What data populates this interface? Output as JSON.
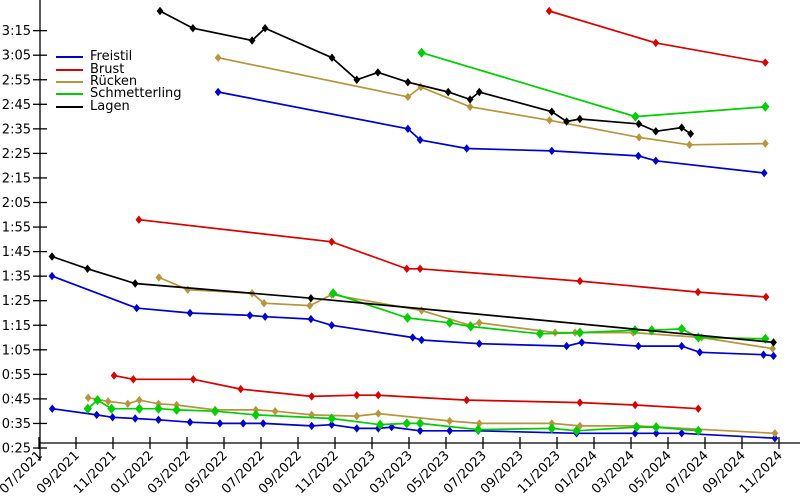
{
  "page": {
    "background": "#ffffff"
  },
  "chart_data": {
    "type": "line",
    "title": "",
    "marker": "diamond",
    "grid": false,
    "legend_position": "upper-left-inside",
    "x_axis": {
      "unit": "month/year",
      "note": "series point x values are in tick-index units: 0 = 07/2021, each tick = 2 months",
      "tick_labels": [
        "07/2021",
        "09/2021",
        "11/2021",
        "01/2022",
        "03/2022",
        "05/2022",
        "07/2022",
        "09/2022",
        "11/2022",
        "01/2023",
        "03/2023",
        "05/2023",
        "07/2023",
        "09/2023",
        "11/2023",
        "01/2024",
        "03/2024",
        "05/2024",
        "07/2024",
        "09/2024",
        "11/2024"
      ]
    },
    "y_axis": {
      "unit": "min:sec (swim time, seconds in data)",
      "labeled_range_seconds": [
        25,
        195
      ],
      "tick_labels": [
        "0:25",
        "0:35",
        "0:45",
        "0:55",
        "1:05",
        "1:15",
        "1:25",
        "1:35",
        "1:45",
        "1:55",
        "2:05",
        "2:15",
        "2:25",
        "2:35",
        "2:45",
        "2:55",
        "3:05",
        "3:15"
      ]
    },
    "legend": [
      {
        "label": "Freistil",
        "color": "#0000cc"
      },
      {
        "label": "Brust",
        "color": "#d60000"
      },
      {
        "label": "Rücken",
        "color": "#b5953e"
      },
      {
        "label": "Schmetterling",
        "color": "#00cd00"
      },
      {
        "label": "Lagen",
        "color": "#000000"
      }
    ],
    "series": [
      {
        "stroke": "Freistil",
        "group": "top",
        "color": "#0000cc",
        "points": [
          [
            4.84,
            170
          ],
          [
            9.97,
            155
          ],
          [
            10.3,
            150.5
          ],
          [
            11.56,
            147
          ],
          [
            13.86,
            146
          ],
          [
            16.2,
            144
          ],
          [
            16.67,
            142
          ],
          [
            19.6,
            137
          ]
        ]
      },
      {
        "stroke": "Freistil",
        "group": "middle",
        "color": "#0000cc",
        "points": [
          [
            0.35,
            95
          ],
          [
            2.64,
            82
          ],
          [
            4.08,
            80
          ],
          [
            5.7,
            79
          ],
          [
            6.11,
            78.5
          ],
          [
            7.35,
            77.5
          ],
          [
            7.91,
            75
          ],
          [
            10.1,
            70
          ],
          [
            10.34,
            69
          ],
          [
            11.9,
            67.5
          ],
          [
            14.26,
            66.5
          ],
          [
            14.67,
            68
          ],
          [
            16.2,
            66.5
          ],
          [
            17.37,
            66.5
          ],
          [
            17.86,
            64
          ],
          [
            19.58,
            63
          ],
          [
            19.85,
            62.5
          ]
        ]
      },
      {
        "stroke": "Freistil",
        "group": "bottom",
        "color": "#0000cc",
        "points": [
          [
            0.36,
            41
          ],
          [
            1.56,
            38.5
          ],
          [
            1.99,
            37.5
          ],
          [
            2.6,
            37
          ],
          [
            3.23,
            36.5
          ],
          [
            4.08,
            35.5
          ],
          [
            4.89,
            35
          ],
          [
            5.52,
            35
          ],
          [
            6.06,
            35
          ],
          [
            7.37,
            34
          ],
          [
            7.91,
            34.5
          ],
          [
            8.59,
            33
          ],
          [
            9.17,
            33
          ],
          [
            9.53,
            33.5
          ],
          [
            10.3,
            32
          ],
          [
            11.1,
            32
          ],
          [
            11.87,
            32
          ],
          [
            14.53,
            31
          ],
          [
            16.11,
            31
          ],
          [
            16.68,
            31
          ],
          [
            17.37,
            31
          ],
          [
            19.89,
            29
          ]
        ]
      },
      {
        "stroke": "Brust",
        "group": "top",
        "color": "#d60000",
        "points": [
          [
            13.79,
            203
          ],
          [
            16.67,
            190
          ],
          [
            19.63,
            182
          ]
        ]
      },
      {
        "stroke": "Brust",
        "group": "middle",
        "color": "#d60000",
        "points": [
          [
            2.7,
            118
          ],
          [
            7.91,
            109
          ],
          [
            9.94,
            98
          ],
          [
            10.3,
            98
          ],
          [
            14.62,
            93
          ],
          [
            17.81,
            88.5
          ],
          [
            19.65,
            86.5
          ]
        ]
      },
      {
        "stroke": "Brust",
        "group": "bottom",
        "color": "#d60000",
        "points": [
          [
            2.03,
            54.5
          ],
          [
            2.55,
            53
          ],
          [
            4.17,
            53
          ],
          [
            5.45,
            49
          ],
          [
            7.37,
            46
          ],
          [
            8.59,
            46.5
          ],
          [
            9.17,
            46.5
          ],
          [
            11.56,
            44.5
          ],
          [
            14.62,
            43.5
          ],
          [
            16.11,
            42.5
          ],
          [
            17.82,
            41
          ]
        ]
      },
      {
        "stroke": "Rücken",
        "group": "top",
        "color": "#b5953e",
        "points": [
          [
            4.84,
            184
          ],
          [
            9.97,
            168
          ],
          [
            10.32,
            172
          ],
          [
            11.65,
            164
          ],
          [
            13.8,
            158.5
          ],
          [
            16.22,
            151.5
          ],
          [
            17.58,
            148.5
          ],
          [
            19.63,
            149
          ]
        ]
      },
      {
        "stroke": "Rücken",
        "group": "middle",
        "color": "#b5953e",
        "points": [
          [
            3.24,
            94.5
          ],
          [
            4.02,
            89.5
          ],
          [
            5.76,
            88
          ],
          [
            6.08,
            84
          ],
          [
            7.32,
            83
          ],
          [
            7.91,
            87.5
          ],
          [
            10.34,
            81
          ],
          [
            11.65,
            75
          ],
          [
            11.9,
            76
          ],
          [
            13.95,
            72
          ],
          [
            14.49,
            72
          ],
          [
            16.06,
            72
          ],
          [
            17.91,
            70
          ],
          [
            19.83,
            65.5
          ]
        ]
      },
      {
        "stroke": "Rücken",
        "group": "bottom",
        "color": "#b5953e",
        "points": [
          [
            1.33,
            45.5
          ],
          [
            1.87,
            44
          ],
          [
            2.4,
            43
          ],
          [
            2.71,
            44.5
          ],
          [
            3.23,
            43
          ],
          [
            3.72,
            42.5
          ],
          [
            4.76,
            40.5
          ],
          [
            5.86,
            40.5
          ],
          [
            6.38,
            40
          ],
          [
            7.37,
            38.5
          ],
          [
            8.59,
            38
          ],
          [
            9.17,
            39
          ],
          [
            11.1,
            36
          ],
          [
            11.9,
            35
          ],
          [
            13.86,
            35
          ],
          [
            14.62,
            34
          ],
          [
            16.15,
            34
          ],
          [
            19.89,
            31
          ]
        ]
      },
      {
        "stroke": "Schmetterling",
        "group": "top",
        "color": "#00cd00",
        "points": [
          [
            10.34,
            186
          ],
          [
            16.12,
            160
          ],
          [
            19.63,
            164
          ]
        ]
      },
      {
        "stroke": "Schmetterling",
        "group": "middle",
        "color": "#00cd00",
        "points": [
          [
            7.95,
            88
          ],
          [
            9.96,
            78
          ],
          [
            11.1,
            76
          ],
          [
            11.67,
            74.5
          ],
          [
            13.54,
            71.5
          ],
          [
            14.62,
            72
          ],
          [
            16.11,
            73
          ],
          [
            16.56,
            73
          ],
          [
            17.37,
            73.5
          ],
          [
            17.82,
            70
          ],
          [
            19.63,
            69.5
          ]
        ]
      },
      {
        "stroke": "Schmetterling",
        "group": "bottom",
        "color": "#00cd00",
        "points": [
          [
            1.32,
            41
          ],
          [
            1.58,
            44.5
          ],
          [
            1.96,
            41
          ],
          [
            2.71,
            41
          ],
          [
            3.23,
            41
          ],
          [
            3.72,
            40.5
          ],
          [
            4.76,
            40
          ],
          [
            5.86,
            38.5
          ],
          [
            7.91,
            37
          ],
          [
            9.22,
            34.5
          ],
          [
            9.94,
            35
          ],
          [
            10.3,
            35
          ],
          [
            11.87,
            32.5
          ],
          [
            13.86,
            33
          ],
          [
            14.53,
            32
          ],
          [
            16.15,
            33.5
          ],
          [
            16.68,
            33.5
          ],
          [
            17.82,
            32
          ]
        ]
      },
      {
        "stroke": "Lagen",
        "group": "top",
        "color": "#000000",
        "points": [
          [
            3.27,
            203
          ],
          [
            4.16,
            196
          ],
          [
            5.76,
            191
          ],
          [
            6.11,
            196
          ],
          [
            7.92,
            184
          ],
          [
            8.59,
            175
          ],
          [
            9.16,
            178
          ],
          [
            9.97,
            174
          ],
          [
            11.06,
            170
          ],
          [
            11.65,
            167
          ],
          [
            11.9,
            170
          ],
          [
            13.86,
            162
          ],
          [
            14.26,
            158
          ],
          [
            14.62,
            159
          ],
          [
            16.21,
            157
          ],
          [
            16.67,
            154
          ],
          [
            17.37,
            155.5
          ],
          [
            17.61,
            153
          ]
        ]
      },
      {
        "stroke": "Lagen",
        "group": "middle",
        "color": "#000000",
        "points": [
          [
            0.35,
            103
          ],
          [
            1.31,
            98
          ],
          [
            2.6,
            92
          ],
          [
            7.35,
            86
          ],
          [
            19.85,
            68
          ]
        ]
      }
    ]
  }
}
